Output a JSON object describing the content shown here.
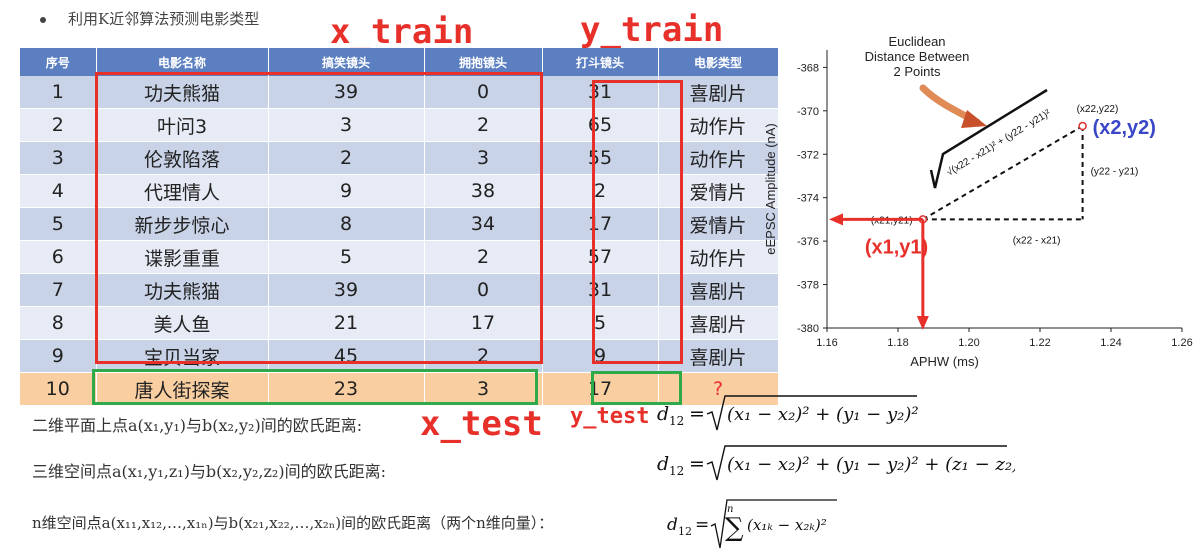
{
  "heading": {
    "bullet_text": "利用K近邻算法预测电影类型"
  },
  "labels": {
    "x_train": "x_train",
    "y_train": "y_train",
    "x_test": "x_test",
    "y_test": "y_test"
  },
  "table": {
    "headers": [
      "序号",
      "电影名称",
      "搞笑镜头",
      "拥抱镜头",
      "打斗镜头",
      "电影类型"
    ],
    "rows": [
      [
        "1",
        "功夫熊猫",
        "39",
        "0",
        "31",
        "喜剧片"
      ],
      [
        "2",
        "叶问3",
        "3",
        "2",
        "65",
        "动作片"
      ],
      [
        "3",
        "伦敦陷落",
        "2",
        "3",
        "55",
        "动作片"
      ],
      [
        "4",
        "代理情人",
        "9",
        "38",
        "2",
        "爱情片"
      ],
      [
        "5",
        "新步步惊心",
        "8",
        "34",
        "17",
        "爱情片"
      ],
      [
        "6",
        "谍影重重",
        "5",
        "2",
        "57",
        "动作片"
      ],
      [
        "7",
        "功夫熊猫",
        "39",
        "0",
        "31",
        "喜剧片"
      ],
      [
        "8",
        "美人鱼",
        "21",
        "17",
        "5",
        "喜剧片"
      ],
      [
        "9",
        "宝贝当家",
        "45",
        "2",
        "9",
        "喜剧片"
      ]
    ],
    "test_row": [
      "10",
      "唐人街探案",
      "23",
      "3",
      "17",
      "?"
    ]
  },
  "formulas": {
    "line1_text": "二维平面上点a(x₁,y₁)与b(x₂,y₂)间的欧氏距离:",
    "line2_text": "三维空间点a(x₁,y₁,z₁)与b(x₂,y₂,z₂)间的欧氏距离:",
    "line3_text": "n维空间点a(x₁₁,x₁₂,…,x₁ₙ)与b(x₂₁,x₂₂,…,x₂ₙ)间的欧氏距离（两个n维向量）："
  },
  "chart": {
    "header_lines": [
      "Euclidean",
      "Distance Between",
      "2 Points"
    ],
    "xlabel": "APHW (ms)",
    "ylabel": "eEPSC Amplitude (nA)",
    "x_ticks": [
      "1.16",
      "1.18",
      "1.20",
      "1.22",
      "1.24",
      "1.26"
    ],
    "y_ticks": [
      "-368",
      "-370",
      "-372",
      "-374",
      "-376",
      "-378",
      "-380"
    ],
    "p1_label": "(x21,y21)",
    "p2_label": "(x22,y22)",
    "dx_label": "(x22 - x21)",
    "dy_label": "(y22 - y21)",
    "hyp_label": "√(x22 - x21)² + (y22 - y21)²",
    "big_p1": "(x1,y1)",
    "big_p2": "(x2,y2)",
    "point1": {
      "x": 1.187,
      "y": -375.0
    },
    "point2": {
      "x": 1.232,
      "y": -370.7
    },
    "xlim": [
      1.16,
      1.26
    ],
    "ylim": [
      -380,
      -367.2
    ]
  }
}
